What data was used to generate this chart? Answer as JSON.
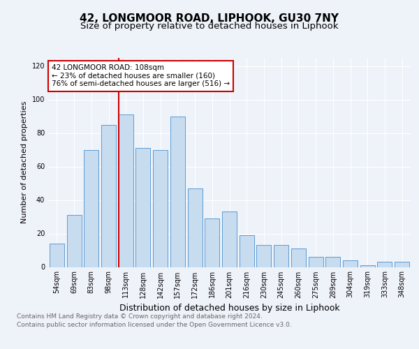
{
  "title": "42, LONGMOOR ROAD, LIPHOOK, GU30 7NY",
  "subtitle": "Size of property relative to detached houses in Liphook",
  "xlabel": "Distribution of detached houses by size in Liphook",
  "ylabel": "Number of detached properties",
  "categories": [
    "54sqm",
    "69sqm",
    "83sqm",
    "98sqm",
    "113sqm",
    "128sqm",
    "142sqm",
    "157sqm",
    "172sqm",
    "186sqm",
    "201sqm",
    "216sqm",
    "230sqm",
    "245sqm",
    "260sqm",
    "275sqm",
    "289sqm",
    "304sqm",
    "319sqm",
    "333sqm",
    "348sqm"
  ],
  "values": [
    14,
    31,
    70,
    85,
    91,
    71,
    70,
    90,
    47,
    29,
    33,
    19,
    13,
    13,
    11,
    6,
    6,
    4,
    1,
    3,
    3
  ],
  "bar_color": "#c8dcef",
  "bar_edge_color": "#5b9bd5",
  "vline_x_index": 4,
  "vline_color": "#cc0000",
  "annotation_line1": "42 LONGMOOR ROAD: 108sqm",
  "annotation_line2": "← 23% of detached houses are smaller (160)",
  "annotation_line3": "76% of semi-detached houses are larger (516) →",
  "annotation_box_color": "#ffffff",
  "annotation_box_edge_color": "#cc0000",
  "ylim": [
    0,
    125
  ],
  "yticks": [
    0,
    20,
    40,
    60,
    80,
    100,
    120
  ],
  "background_color": "#eef2f9",
  "grid_color": "#ffffff",
  "footer_line1": "Contains HM Land Registry data © Crown copyright and database right 2024.",
  "footer_line2": "Contains public sector information licensed under the Open Government Licence v3.0.",
  "title_fontsize": 11,
  "subtitle_fontsize": 9.5,
  "xlabel_fontsize": 9,
  "ylabel_fontsize": 8,
  "tick_fontsize": 7,
  "annotation_fontsize": 7.5,
  "footer_fontsize": 6.5
}
